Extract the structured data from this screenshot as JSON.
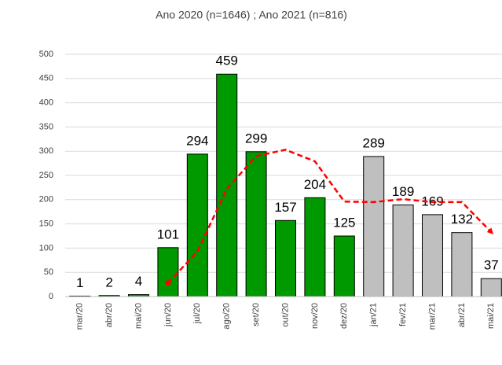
{
  "chart_data": {
    "type": "bar",
    "title": "Ano 2020 (n=1646) ; Ano 2021 (n=816)",
    "categories": [
      "mar/20",
      "abr/20",
      "mai/20",
      "jun/20",
      "jul/20",
      "ago/20",
      "set/20",
      "out/20",
      "nov/20",
      "dez/20",
      "jan/21",
      "fev/21",
      "mar/21",
      "abr/21",
      "mai/21"
    ],
    "values": [
      1,
      2,
      4,
      101,
      294,
      459,
      299,
      157,
      204,
      125,
      289,
      189,
      169,
      132,
      37
    ],
    "colors": [
      "#009900",
      "#009900",
      "#009900",
      "#009900",
      "#009900",
      "#009900",
      "#009900",
      "#009900",
      "#009900",
      "#009900",
      "#bfbfbf",
      "#bfbfbf",
      "#bfbfbf",
      "#bfbfbf",
      "#bfbfbf"
    ],
    "trend_line": {
      "color": "#ff0000",
      "dashed": true,
      "arrow": true,
      "values": [
        null,
        null,
        null,
        28,
        93,
        222,
        290,
        303,
        279,
        196,
        195,
        201,
        195,
        195,
        133
      ]
    },
    "ylim": [
      0,
      500
    ],
    "yticks": [
      0,
      50,
      100,
      150,
      200,
      250,
      300,
      350,
      400,
      450,
      500
    ],
    "grid": true
  }
}
